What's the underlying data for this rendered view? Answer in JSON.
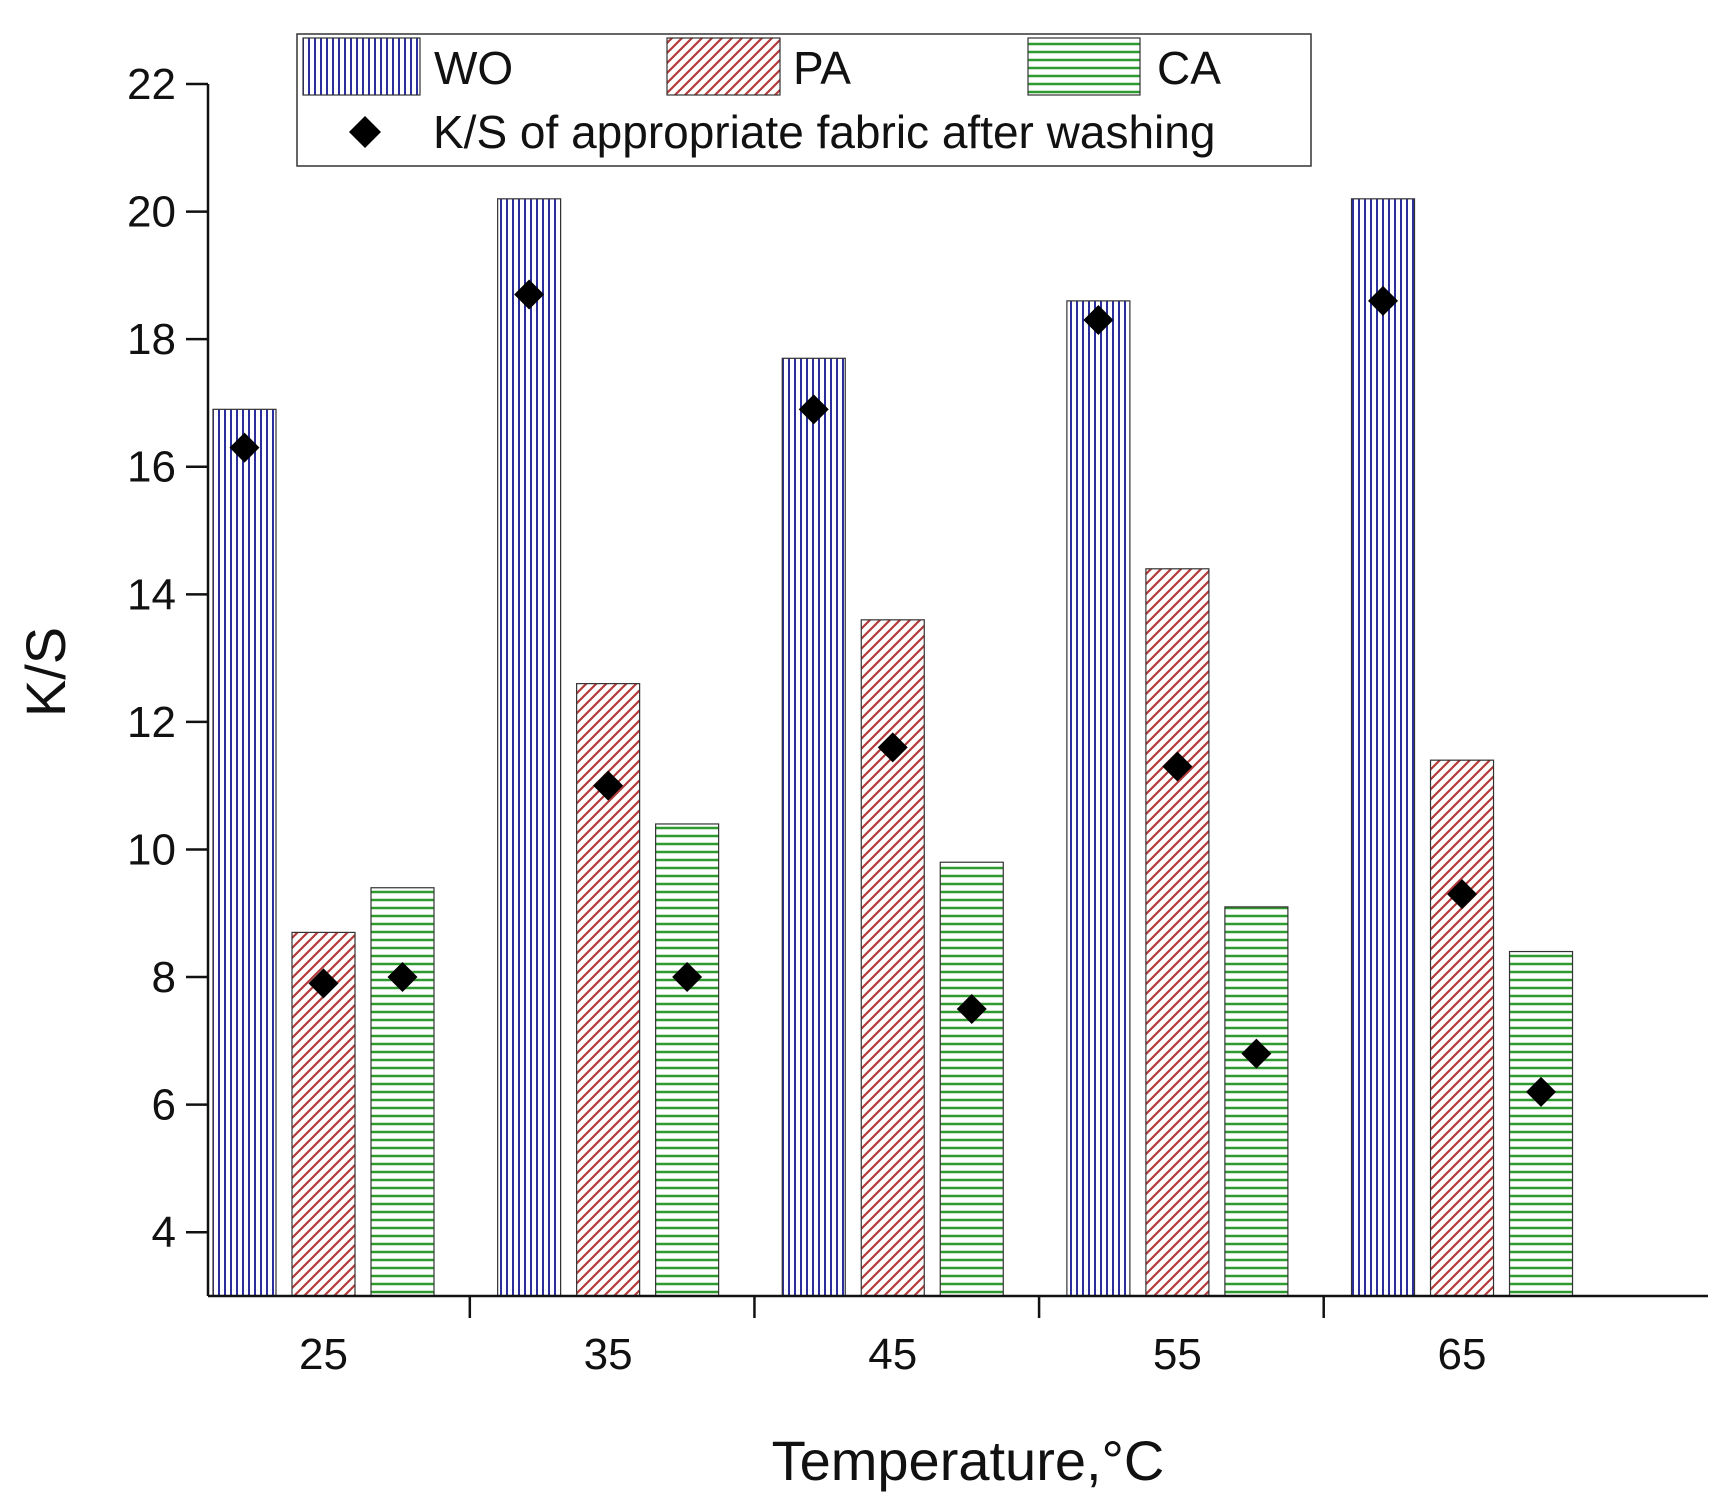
{
  "chart_data": {
    "type": "bar",
    "xlabel": "Temperature,°C",
    "ylabel": "K/S",
    "categories": [
      "25",
      "35",
      "45",
      "55",
      "65"
    ],
    "ylim": [
      3,
      22
    ],
    "yticks": [
      4,
      6,
      8,
      10,
      12,
      14,
      16,
      18,
      20,
      22
    ],
    "series": [
      {
        "name": "WO",
        "color": "#2b2f9e",
        "pattern": "vertical",
        "values": [
          16.9,
          20.2,
          17.7,
          18.6,
          20.2
        ]
      },
      {
        "name": "PA",
        "color": "#b43a3a",
        "pattern": "diagonal",
        "values": [
          8.7,
          12.6,
          13.6,
          14.4,
          11.4
        ]
      },
      {
        "name": "CA",
        "color": "#2f9b2f",
        "pattern": "horizontal",
        "values": [
          9.4,
          10.4,
          9.8,
          9.1,
          8.4
        ]
      }
    ],
    "after_washing": {
      "name": "K/S of appropriate fabric after washing",
      "marker": "diamond",
      "color": "#000000",
      "values": {
        "WO": [
          16.3,
          18.7,
          16.9,
          18.3,
          18.6
        ],
        "PA": [
          7.9,
          11.0,
          11.6,
          11.3,
          9.3
        ],
        "CA": [
          8.0,
          8.0,
          7.5,
          6.8,
          6.2
        ]
      }
    },
    "legend_position": "top-center"
  }
}
